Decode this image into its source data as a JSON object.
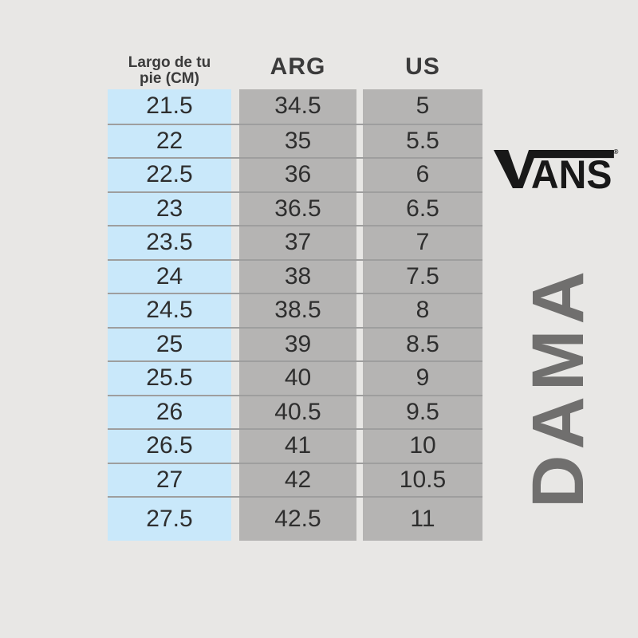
{
  "colors": {
    "page_bg": "#e8e7e5",
    "foot_column_bg": "#c9e8fa",
    "size_column_bg": "#b5b4b3",
    "row_divider": "#9e9e9e",
    "header_text": "#3b3b3b",
    "cell_text": "#2e2e2e",
    "logo_color": "#181818",
    "vertical_label_color": "#706f6e"
  },
  "table": {
    "headers": {
      "cm_line1": "Largo de tu",
      "cm_line2": "pie (CM)",
      "arg": "ARG",
      "us": "US"
    },
    "rows": [
      {
        "cm": "21.5",
        "arg": "34.5",
        "us": "5"
      },
      {
        "cm": "22",
        "arg": "35",
        "us": "5.5"
      },
      {
        "cm": "22.5",
        "arg": "36",
        "us": "6"
      },
      {
        "cm": "23",
        "arg": "36.5",
        "us": "6.5"
      },
      {
        "cm": "23.5",
        "arg": "37",
        "us": "7"
      },
      {
        "cm": "24",
        "arg": "38",
        "us": "7.5"
      },
      {
        "cm": "24.5",
        "arg": "38.5",
        "us": "8"
      },
      {
        "cm": "25",
        "arg": "39",
        "us": "8.5"
      },
      {
        "cm": "25.5",
        "arg": "40",
        "us": "9"
      },
      {
        "cm": "26",
        "arg": "40.5",
        "us": "9.5"
      },
      {
        "cm": "26.5",
        "arg": "41",
        "us": "10"
      },
      {
        "cm": "27",
        "arg": "42",
        "us": "10.5"
      },
      {
        "cm": "27.5",
        "arg": "42.5",
        "us": "11"
      }
    ]
  },
  "brand": {
    "logo_letters_after_v": "ANS",
    "registered_mark": "®",
    "vertical_label": "DAMA"
  },
  "chart_data": {
    "type": "table",
    "title": "DAMA",
    "columns": [
      "Largo de tu pie (CM)",
      "ARG",
      "US"
    ],
    "rows": [
      [
        21.5,
        34.5,
        5
      ],
      [
        22,
        35,
        5.5
      ],
      [
        22.5,
        36,
        6
      ],
      [
        23,
        36.5,
        6.5
      ],
      [
        23.5,
        37,
        7
      ],
      [
        24,
        38,
        7.5
      ],
      [
        24.5,
        38.5,
        8
      ],
      [
        25,
        39,
        8.5
      ],
      [
        25.5,
        40,
        9
      ],
      [
        26,
        40.5,
        9.5
      ],
      [
        26.5,
        41,
        10
      ],
      [
        27,
        42,
        10.5
      ],
      [
        27.5,
        42.5,
        11
      ]
    ]
  }
}
